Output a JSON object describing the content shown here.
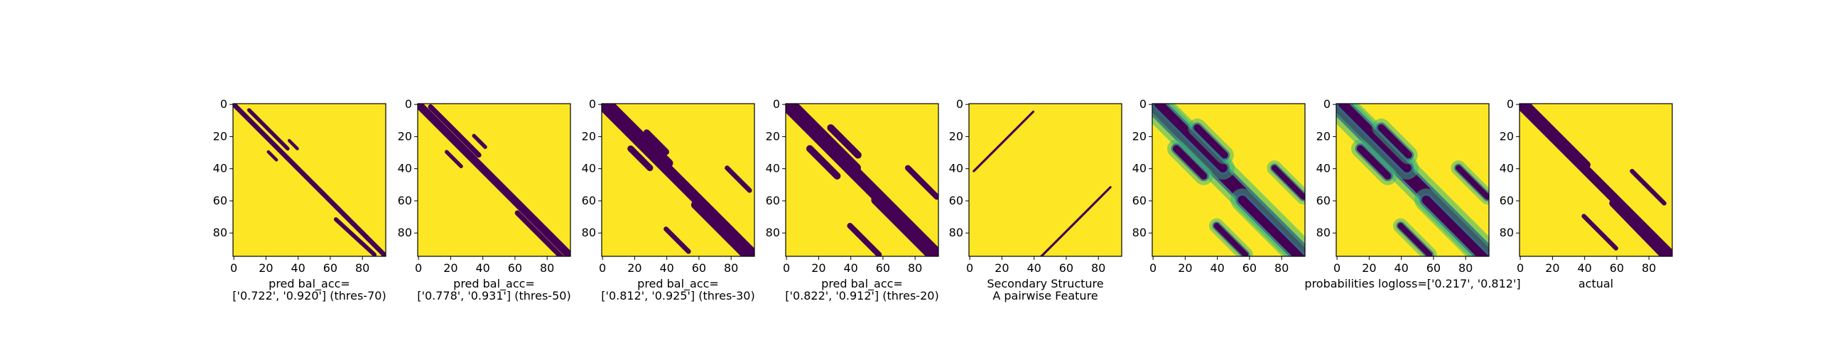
{
  "chart_data": [
    {
      "type": "heatmap",
      "rendering": "binary",
      "caption": [
        "pred bal_acc=",
        "['0.722', '0.920'] (thres-70)"
      ],
      "xlim": [
        0,
        95
      ],
      "ylim": [
        95,
        0
      ],
      "xticks": [
        0,
        20,
        40,
        60,
        80
      ],
      "yticks": [
        0,
        20,
        40,
        60,
        80
      ],
      "main_diagonal": {
        "from": 0,
        "to": 95,
        "half_width": 1.5
      },
      "contact_segments": [
        [
          10,
          34,
          4,
          28,
          1.2
        ],
        [
          64,
          88,
          72,
          94,
          1.3
        ],
        [
          22,
          27,
          30,
          35,
          1.0
        ],
        [
          35,
          40,
          23,
          28,
          1.0
        ]
      ]
    },
    {
      "type": "heatmap",
      "rendering": "binary",
      "caption": [
        "pred bal_acc=",
        "['0.778', '0.931'] (thres-50)"
      ],
      "xlim": [
        0,
        95
      ],
      "ylim": [
        95,
        0
      ],
      "xticks": [
        0,
        20,
        40,
        60,
        80
      ],
      "yticks": [
        0,
        20,
        40,
        60,
        80
      ],
      "main_diagonal": {
        "from": 0,
        "to": 95,
        "half_width": 2.5
      },
      "contact_segments": [
        [
          8,
          38,
          2,
          32,
          1.6
        ],
        [
          62,
          90,
          68,
          96,
          1.6
        ],
        [
          18,
          27,
          30,
          39,
          1.2
        ],
        [
          35,
          42,
          20,
          27,
          1.2
        ]
      ]
    },
    {
      "type": "heatmap",
      "rendering": "binary",
      "caption": [
        "pred bal_acc=",
        "['0.812', '0.925'] (thres-30)"
      ],
      "xlim": [
        0,
        95
      ],
      "ylim": [
        95,
        0
      ],
      "xticks": [
        0,
        20,
        40,
        60,
        80
      ],
      "yticks": [
        0,
        20,
        40,
        60,
        80
      ],
      "main_diagonal": {
        "from": 0,
        "to": 95,
        "half_width": 3.5
      },
      "contact_segments": [
        [
          5,
          42,
          0,
          37,
          2.4
        ],
        [
          58,
          95,
          63,
          100,
          2.4
        ],
        [
          18,
          30,
          28,
          40,
          2.0
        ],
        [
          28,
          40,
          18,
          30,
          2.0
        ],
        [
          78,
          92,
          40,
          54,
          1.5
        ],
        [
          40,
          54,
          78,
          92,
          1.5
        ]
      ]
    },
    {
      "type": "heatmap",
      "rendering": "binary",
      "caption": [
        "pred bal_acc=",
        "['0.822', '0.912'] (thres-20)"
      ],
      "xlim": [
        0,
        95
      ],
      "ylim": [
        95,
        0
      ],
      "xticks": [
        0,
        20,
        40,
        60,
        80
      ],
      "yticks": [
        0,
        20,
        40,
        60,
        80
      ],
      "main_diagonal": {
        "from": 0,
        "to": 95,
        "half_width": 4.0
      },
      "contact_segments": [
        [
          4,
          44,
          0,
          40,
          2.8
        ],
        [
          56,
          96,
          60,
          100,
          2.8
        ],
        [
          15,
          32,
          28,
          45,
          2.2
        ],
        [
          28,
          45,
          15,
          32,
          2.2
        ],
        [
          76,
          94,
          40,
          58,
          1.8
        ],
        [
          40,
          58,
          76,
          94,
          1.8
        ]
      ]
    },
    {
      "type": "heatmap",
      "rendering": "binary",
      "caption": [
        "Secondary Structure",
        "A pairwise Feature"
      ],
      "xlim": [
        0,
        95
      ],
      "ylim": [
        95,
        0
      ],
      "xticks": [
        0,
        20,
        40,
        60,
        80
      ],
      "yticks": [
        0,
        20,
        40,
        60,
        80
      ],
      "contact_segments": [
        [
          3,
          40,
          42,
          5,
          0.7
        ],
        [
          45,
          88,
          95,
          52,
          0.7
        ]
      ]
    },
    {
      "type": "heatmap",
      "rendering": "probability",
      "caption": [
        "",
        ""
      ],
      "xlim": [
        0,
        95
      ],
      "ylim": [
        95,
        0
      ],
      "xticks": [
        0,
        20,
        40,
        60,
        80
      ],
      "yticks": [
        0,
        20,
        40,
        60,
        80
      ],
      "main_diagonal": {
        "from": 0,
        "to": 95,
        "half_width": 4.0
      },
      "contact_segments": [
        [
          4,
          44,
          0,
          40,
          2.8
        ],
        [
          56,
          96,
          60,
          100,
          2.8
        ],
        [
          15,
          32,
          28,
          45,
          2.2
        ],
        [
          28,
          45,
          15,
          32,
          2.2
        ],
        [
          76,
          94,
          40,
          58,
          1.8
        ],
        [
          40,
          58,
          76,
          94,
          1.8
        ]
      ]
    },
    {
      "type": "heatmap",
      "rendering": "probability",
      "caption": [
        "probabilities logloss=['0.217', '0.812']",
        ""
      ],
      "xlim": [
        0,
        95
      ],
      "ylim": [
        95,
        0
      ],
      "xticks": [
        0,
        20,
        40,
        60,
        80
      ],
      "yticks": [
        0,
        20,
        40,
        60,
        80
      ],
      "main_diagonal": {
        "from": 0,
        "to": 95,
        "half_width": 4.0
      },
      "contact_segments": [
        [
          4,
          44,
          0,
          40,
          2.8
        ],
        [
          56,
          96,
          60,
          100,
          2.8
        ],
        [
          15,
          32,
          28,
          45,
          2.2
        ],
        [
          28,
          45,
          15,
          32,
          2.2
        ],
        [
          76,
          94,
          40,
          58,
          1.8
        ],
        [
          40,
          58,
          76,
          94,
          1.8
        ]
      ]
    },
    {
      "type": "heatmap",
      "rendering": "binary",
      "caption": [
        "actual",
        ""
      ],
      "xlim": [
        0,
        95
      ],
      "ylim": [
        95,
        0
      ],
      "xticks": [
        0,
        20,
        40,
        60,
        80
      ],
      "yticks": [
        0,
        20,
        40,
        60,
        80
      ],
      "main_diagonal": {
        "from": 0,
        "to": 95,
        "half_width": 3.0
      },
      "contact_segments": [
        [
          4,
          42,
          0,
          38,
          2.2
        ],
        [
          58,
          95,
          62,
          100,
          2.2
        ],
        [
          20,
          40,
          18,
          38,
          1.6
        ],
        [
          70,
          90,
          42,
          62,
          1.4
        ],
        [
          40,
          60,
          70,
          90,
          1.4
        ]
      ]
    }
  ],
  "colors": {
    "background": "#fde725",
    "contact": "#440154",
    "mid_high": "#35b779",
    "mid_low": "#31688e",
    "frame": "#000000"
  }
}
